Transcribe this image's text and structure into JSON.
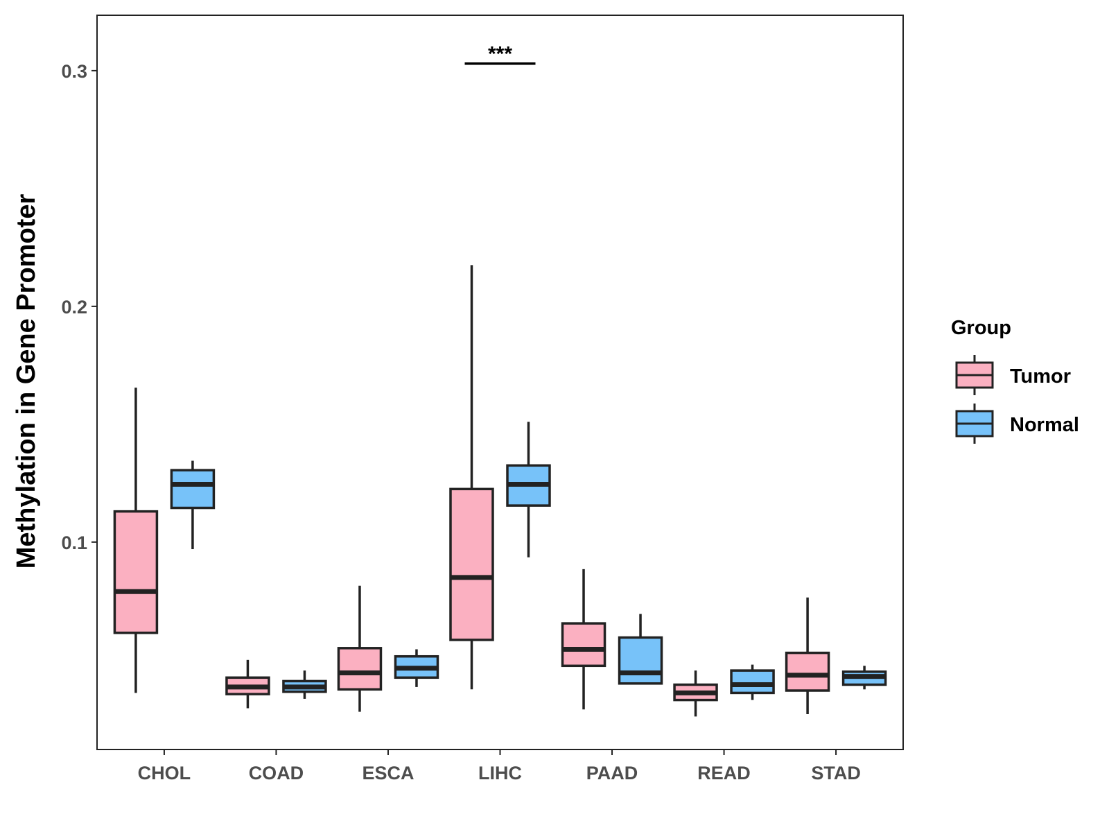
{
  "chart_data": {
    "type": "boxplot",
    "ylabel": "Methylation in Gene Promoter",
    "xlabel": "",
    "ylim": [
      0.012,
      0.3235
    ],
    "yticks": [
      0.1,
      0.2,
      0.3
    ],
    "ytick_labels": [
      "0.1",
      "0.2",
      "0.3"
    ],
    "categories": [
      "CHOL",
      "COAD",
      "ESCA",
      "LIHC",
      "PAAD",
      "READ",
      "STAD"
    ],
    "legend": {
      "title": "Group",
      "position": "right",
      "entries": [
        {
          "name": "Tumor",
          "color": "#fbb0c1"
        },
        {
          "name": "Normal",
          "color": "#77c2f9"
        }
      ]
    },
    "series": [
      {
        "name": "Tumor",
        "color": "#fbb0c1",
        "boxes": [
          {
            "category": "CHOL",
            "min": 0.036,
            "q1": 0.0615,
            "median": 0.079,
            "q3": 0.113,
            "max": 0.1655
          },
          {
            "category": "COAD",
            "min": 0.0295,
            "q1": 0.0355,
            "median": 0.0385,
            "q3": 0.0425,
            "max": 0.05
          },
          {
            "category": "ESCA",
            "min": 0.028,
            "q1": 0.0375,
            "median": 0.0445,
            "q3": 0.055,
            "max": 0.0815
          },
          {
            "category": "LIHC",
            "min": 0.0375,
            "q1": 0.0585,
            "median": 0.085,
            "q3": 0.1225,
            "max": 0.2175
          },
          {
            "category": "PAAD",
            "min": 0.029,
            "q1": 0.0475,
            "median": 0.0545,
            "q3": 0.0655,
            "max": 0.0885
          },
          {
            "category": "READ",
            "min": 0.026,
            "q1": 0.033,
            "median": 0.036,
            "q3": 0.0395,
            "max": 0.0455
          },
          {
            "category": "STAD",
            "min": 0.027,
            "q1": 0.037,
            "median": 0.0435,
            "q3": 0.053,
            "max": 0.0765
          }
        ]
      },
      {
        "name": "Normal",
        "color": "#77c2f9",
        "boxes": [
          {
            "category": "CHOL",
            "min": 0.097,
            "q1": 0.1145,
            "median": 0.1245,
            "q3": 0.1305,
            "max": 0.1345
          },
          {
            "category": "COAD",
            "min": 0.0335,
            "q1": 0.0365,
            "median": 0.0385,
            "q3": 0.041,
            "max": 0.0455
          },
          {
            "category": "ESCA",
            "min": 0.0385,
            "q1": 0.0425,
            "median": 0.0465,
            "q3": 0.0515,
            "max": 0.0545
          },
          {
            "category": "LIHC",
            "min": 0.0935,
            "q1": 0.1155,
            "median": 0.1245,
            "q3": 0.1325,
            "max": 0.151
          },
          {
            "category": "PAAD",
            "min": 0.0395,
            "q1": 0.04,
            "median": 0.0445,
            "q3": 0.0595,
            "max": 0.0695
          },
          {
            "category": "READ",
            "min": 0.033,
            "q1": 0.036,
            "median": 0.0395,
            "q3": 0.0455,
            "max": 0.048
          },
          {
            "category": "STAD",
            "min": 0.0375,
            "q1": 0.0395,
            "median": 0.043,
            "q3": 0.045,
            "max": 0.0475
          }
        ]
      }
    ],
    "annotations": [
      {
        "category": "LIHC",
        "text": "***",
        "y": 0.303
      }
    ]
  }
}
